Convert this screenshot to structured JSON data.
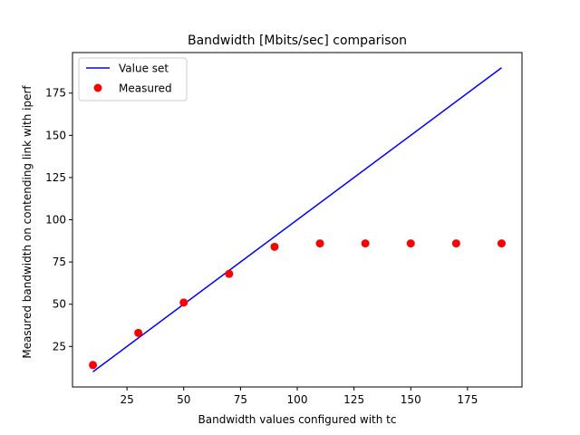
{
  "chart_data": {
    "type": "scatter",
    "title": "Bandwidth [Mbits/sec] comparison",
    "xlabel": "Bandwidth values configured with tc",
    "ylabel": "Measured bandwidth on contending link with iperf",
    "xlim": [
      1,
      199
    ],
    "ylim": [
      1,
      199
    ],
    "xticks": [
      25,
      50,
      75,
      100,
      125,
      150,
      175
    ],
    "yticks": [
      25,
      50,
      75,
      100,
      125,
      150,
      175
    ],
    "grid": false,
    "legend_position": "top-left",
    "series": [
      {
        "name": "Value set",
        "kind": "line",
        "color": "#0000ff",
        "x": [
          10,
          190
        ],
        "y": [
          10,
          190
        ]
      },
      {
        "name": "Measured",
        "kind": "scatter",
        "color": "#ff0000",
        "x": [
          10,
          30,
          50,
          70,
          90,
          110,
          130,
          150,
          170,
          190
        ],
        "y": [
          14,
          33,
          51,
          68,
          84,
          86,
          86,
          86,
          86,
          86
        ]
      }
    ]
  }
}
